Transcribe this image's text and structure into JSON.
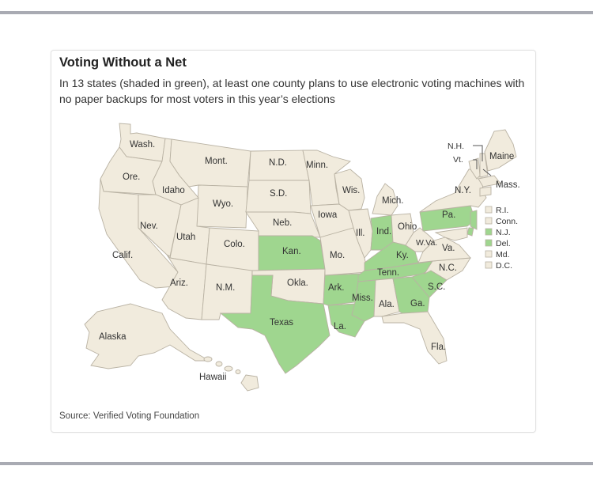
{
  "title": "Voting Without a Net",
  "subtitle": "In 13 states (shaded in green), at least one county plans to use electronic voting machines with no paper backups for most voters in this year’s elections",
  "source": "Source: Verified Voting Foundation",
  "colors": {
    "green": "#9fd68f",
    "beige": "#f1ebdd",
    "border": "#b9b2a3",
    "leader": "#555555"
  },
  "states": {
    "wa": "Wash.",
    "or": "Ore.",
    "ca": "Calif.",
    "id": "Idaho",
    "nv": "Nev.",
    "mt": "Mont.",
    "wy": "Wyo.",
    "ut": "Utah",
    "az": "Ariz.",
    "co": "Colo.",
    "nm": "N.M.",
    "nd": "N.D.",
    "sd": "S.D.",
    "ne": "Neb.",
    "ks": "Kan.",
    "ok": "Okla.",
    "tx": "Texas",
    "mn": "Minn.",
    "ia": "Iowa",
    "mo": "Mo.",
    "ar": "Ark.",
    "la": "La.",
    "wi": "Wis.",
    "il": "Ill.",
    "mi": "Mich.",
    "in": "Ind.",
    "oh": "Ohio",
    "ky": "Ky.",
    "tn": "Tenn.",
    "ms": "Miss.",
    "al": "Ala.",
    "ga": "Ga.",
    "fl": "Fla.",
    "sc": "S.C.",
    "nc": "N.C.",
    "va": "Va.",
    "wv": "W.Va.",
    "pa": "Pa.",
    "ny": "N.Y.",
    "nh": "N.H.",
    "vt": "Vt.",
    "me": "Maine",
    "ma": "Mass.",
    "ak": "Alaska",
    "hi": "Hawaii"
  },
  "legend": [
    {
      "label": "R.I.",
      "green": false
    },
    {
      "label": "Conn.",
      "green": false
    },
    {
      "label": "N.J.",
      "green": true
    },
    {
      "label": "Del.",
      "green": true
    },
    {
      "label": "Md.",
      "green": false
    },
    {
      "label": "D.C.",
      "green": false
    }
  ]
}
